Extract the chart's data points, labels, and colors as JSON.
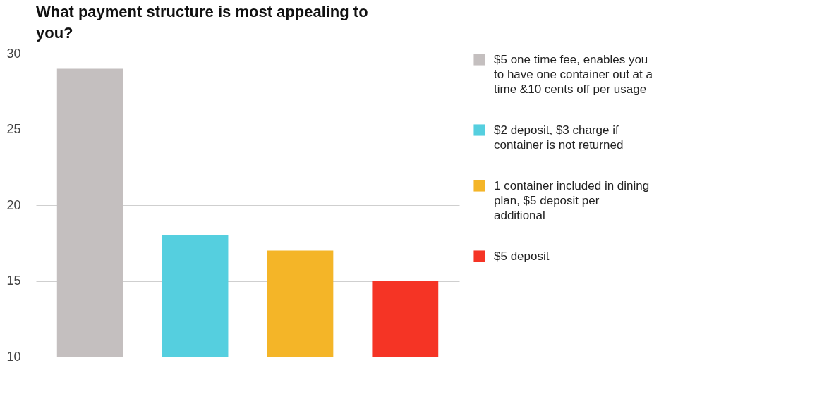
{
  "chart_data": {
    "type": "bar",
    "title": "What payment structure is most appealing to you?",
    "categories": [
      null,
      null,
      null,
      null
    ],
    "series": [
      {
        "name": "$5 one time fee, enables you to have one container out at a time &10 cents off per usage",
        "color": "#c4bfbf",
        "values": [
          29,
          null,
          null,
          null
        ]
      },
      {
        "name": "$2 deposit, $3 charge if container is not returned",
        "color": "#55cfdf",
        "values": [
          null,
          18,
          null,
          null
        ]
      },
      {
        "name": "1 container included in dining plan, $5 deposit per additional",
        "color": "#f4b528",
        "values": [
          null,
          null,
          17,
          null
        ]
      },
      {
        "name": "$5 deposit",
        "color": "#f53425",
        "values": [
          null,
          null,
          null,
          15
        ]
      }
    ],
    "ylim": [
      10,
      30
    ],
    "yticks": [
      10,
      15,
      20,
      25,
      30
    ],
    "grid": "y",
    "legend": "right",
    "tick_labels": "y"
  }
}
